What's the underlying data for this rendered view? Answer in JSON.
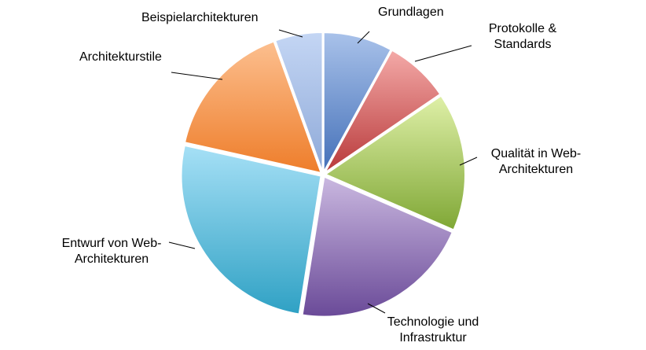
{
  "chart_data": {
    "type": "pie",
    "title": "",
    "legend": "none",
    "slices": [
      {
        "label": "Grundlagen",
        "value": 8,
        "color_light": "#a9c2ea",
        "color_dark": "#4470b8"
      },
      {
        "label": "Protokolle &\nStandards",
        "value": 7.5,
        "color_light": "#f4aaa8",
        "color_dark": "#b8393a"
      },
      {
        "label": "Qualität  in Web-\nArchitekturen",
        "value": 16,
        "color_light": "#dff0a8",
        "color_dark": "#7fa735"
      },
      {
        "label": "Technologie und\nInfrastruktur",
        "value": 21,
        "color_light": "#cab8e0",
        "color_dark": "#6a4a98"
      },
      {
        "label": "Entwurf von Web-\nArchitekturen",
        "value": 26,
        "color_light": "#a6e0f6",
        "color_dark": "#2fa1c4"
      },
      {
        "label": "Architekturstile",
        "value": 16,
        "color_light": "#fcbf8f",
        "color_dark": "#ee7d2a"
      },
      {
        "label": "Beispielarchitekturen",
        "value": 5.5,
        "color_light": "#c4d6f4",
        "color_dark": "#8ea9d8"
      }
    ]
  }
}
